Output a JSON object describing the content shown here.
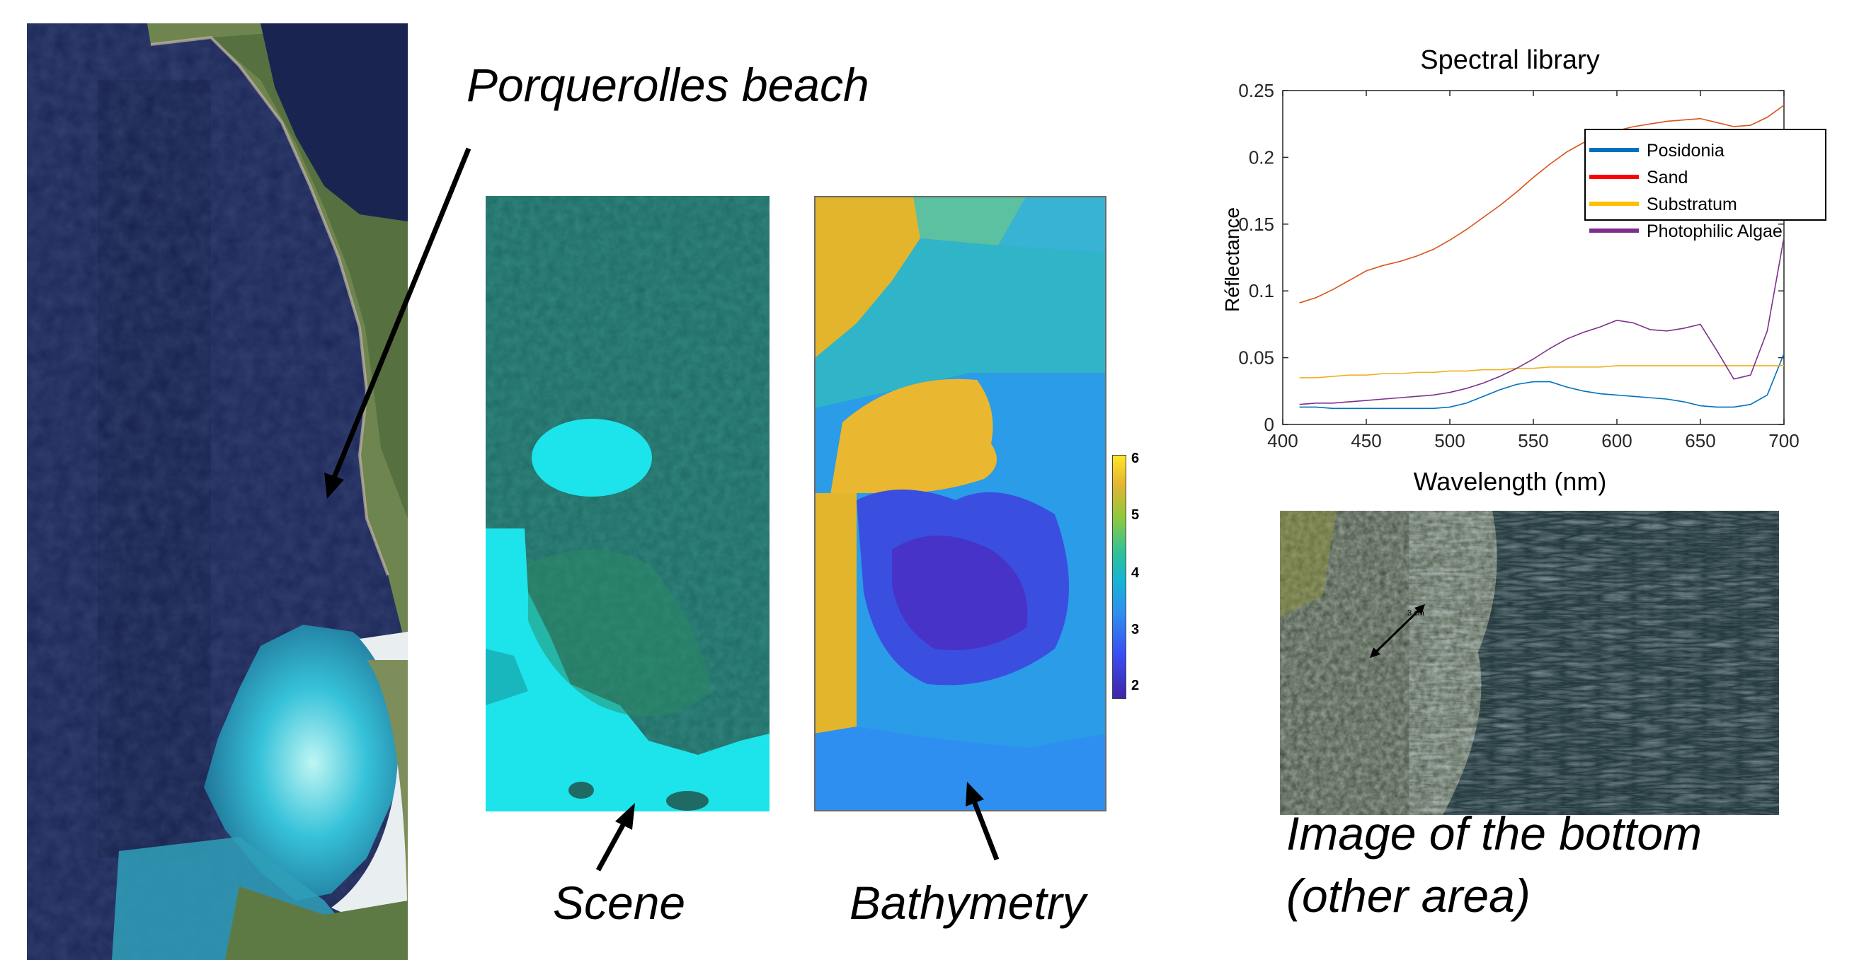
{
  "captions": {
    "porquerolles": "Porquerolles beach",
    "scene": "Scene",
    "bathymetry": "Bathymetry",
    "bottom_line1": "Image of the bottom",
    "bottom_line2": "(other area)"
  },
  "colorbar": {
    "ticks": [
      "6",
      "5",
      "4",
      "3",
      "2"
    ],
    "colormap": "parula"
  },
  "photo_scale_label": "3 cm",
  "colors": {
    "posidonia": "#0072bd",
    "sand": "#d95319",
    "substratum": "#edb120",
    "photophilic_algae": "#7e2f8e",
    "sea_deep": "#1c2a5e",
    "sea_shallow": "#17e0e6",
    "vegetation": "#5a7a3a"
  },
  "chart_data": {
    "type": "line",
    "title": "Spectral library",
    "xlabel": "Wavelength (nm)",
    "ylabel": "Réflectance",
    "xlim": [
      400,
      700
    ],
    "ylim": [
      0,
      0.25
    ],
    "xticks": [
      "400",
      "450",
      "500",
      "550",
      "600",
      "650",
      "700"
    ],
    "yticks": [
      "0",
      "0.05",
      "0.1",
      "0.15",
      "0.2",
      "0.25"
    ],
    "legend_position": "top-right",
    "x": [
      410,
      420,
      430,
      440,
      450,
      460,
      470,
      480,
      490,
      500,
      510,
      520,
      530,
      540,
      550,
      560,
      570,
      580,
      590,
      600,
      610,
      620,
      630,
      640,
      650,
      660,
      670,
      680,
      690,
      700
    ],
    "series": [
      {
        "name": "Posidonia",
        "values": [
          0.013,
          0.013,
          0.012,
          0.012,
          0.012,
          0.012,
          0.012,
          0.012,
          0.012,
          0.013,
          0.016,
          0.021,
          0.026,
          0.03,
          0.032,
          0.032,
          0.028,
          0.025,
          0.023,
          0.022,
          0.021,
          0.02,
          0.019,
          0.017,
          0.014,
          0.013,
          0.013,
          0.015,
          0.022,
          0.053
        ]
      },
      {
        "name": "Sand",
        "values": [
          0.091,
          0.095,
          0.101,
          0.108,
          0.115,
          0.119,
          0.122,
          0.126,
          0.131,
          0.138,
          0.146,
          0.155,
          0.164,
          0.174,
          0.185,
          0.195,
          0.204,
          0.211,
          0.216,
          0.22,
          0.223,
          0.225,
          0.227,
          0.228,
          0.229,
          0.226,
          0.223,
          0.224,
          0.23,
          0.239
        ]
      },
      {
        "name": "Substratum",
        "values": [
          0.035,
          0.035,
          0.036,
          0.037,
          0.037,
          0.038,
          0.038,
          0.039,
          0.039,
          0.04,
          0.04,
          0.041,
          0.041,
          0.042,
          0.042,
          0.043,
          0.043,
          0.043,
          0.043,
          0.044,
          0.044,
          0.044,
          0.044,
          0.044,
          0.044,
          0.044,
          0.044,
          0.044,
          0.044,
          0.044
        ]
      },
      {
        "name": "Photophilic Algae",
        "values": [
          0.015,
          0.016,
          0.016,
          0.017,
          0.018,
          0.019,
          0.02,
          0.021,
          0.022,
          0.024,
          0.027,
          0.031,
          0.036,
          0.042,
          0.049,
          0.057,
          0.064,
          0.069,
          0.073,
          0.078,
          0.076,
          0.071,
          0.07,
          0.072,
          0.075,
          0.055,
          0.034,
          0.037,
          0.07,
          0.14
        ]
      }
    ]
  }
}
